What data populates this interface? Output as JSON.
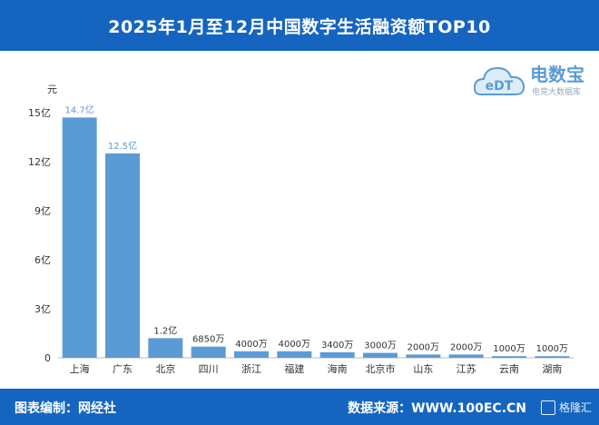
{
  "header": {
    "title": "2025年1月至12月中国数字生活融资额TOP10"
  },
  "footer": {
    "left": "图表编制：网经社",
    "right": "数据来源：WWW.100EC.CN"
  },
  "logo": {
    "brand": "电数宝",
    "tagline": "电竞大数据库",
    "mark": "eDT"
  },
  "watermark": {
    "text": "格隆汇"
  },
  "colors": {
    "bar": "#5b9bd5",
    "header_bg": "#1565c0",
    "label": "#5b9bd5"
  },
  "chart_data": {
    "type": "bar",
    "ylabel": "元",
    "ylim": [
      0,
      15
    ],
    "yticks": [
      0,
      3,
      6,
      9,
      12,
      15
    ],
    "ytick_labels": [
      "0",
      "3亿",
      "6亿",
      "9亿",
      "12亿",
      "15亿"
    ],
    "categories": [
      "上海",
      "广东",
      "北京",
      "四川",
      "浙江",
      "福建",
      "海南",
      "北京市",
      "山东",
      "江苏",
      "云南",
      "湖南"
    ],
    "values": [
      14.7,
      12.5,
      1.2,
      0.685,
      0.4,
      0.4,
      0.34,
      0.3,
      0.2,
      0.2,
      0.1,
      0.1
    ],
    "value_labels": [
      "14.7亿",
      "12.5亿",
      "1.2亿",
      "6850万",
      "4000万",
      "4000万",
      "3400万",
      "3000万",
      "2000万",
      "2000万",
      "1000万",
      "1000万"
    ]
  }
}
